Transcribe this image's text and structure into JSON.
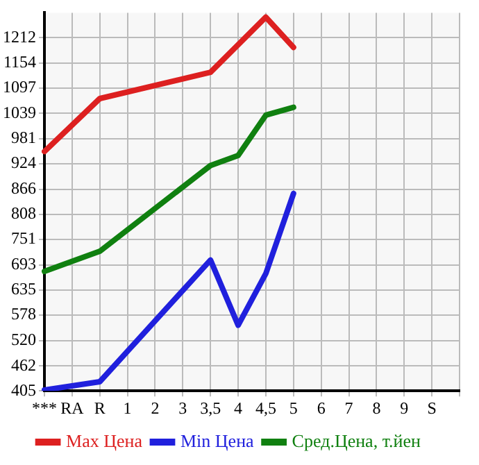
{
  "chart_data": {
    "type": "line",
    "categories": [
      "***",
      "RA",
      "R",
      "1",
      "2",
      "3",
      "3,5",
      "4",
      "4,5",
      "5",
      "6",
      "7",
      "8",
      "9",
      "S",
      null
    ],
    "series": [
      {
        "name": "Max Цена",
        "color": "#dd2020",
        "values": [
          952,
          null,
          1073,
          null,
          null,
          null,
          1133,
          null,
          1259,
          1190,
          null,
          null,
          null,
          null,
          null,
          null
        ]
      },
      {
        "name": "Min Цена",
        "color": "#2020dd",
        "values": [
          407,
          null,
          426,
          null,
          null,
          null,
          704,
          555,
          673,
          856,
          null,
          null,
          null,
          null,
          null,
          null
        ]
      },
      {
        "name": "Сред.Цена, т.йен",
        "color": "#108010",
        "values": [
          678,
          null,
          724,
          null,
          null,
          null,
          920,
          943,
          1035,
          1053,
          null,
          null,
          null,
          null,
          null,
          null
        ]
      }
    ],
    "ylim": [
      405,
      1269
    ],
    "yticks": [
      405,
      462,
      520,
      578,
      635,
      693,
      751,
      808,
      866,
      924,
      981,
      1039,
      1097,
      1154,
      1212
    ],
    "grid": true,
    "legend": "bottom",
    "marker": "none",
    "line_style": "solid"
  }
}
